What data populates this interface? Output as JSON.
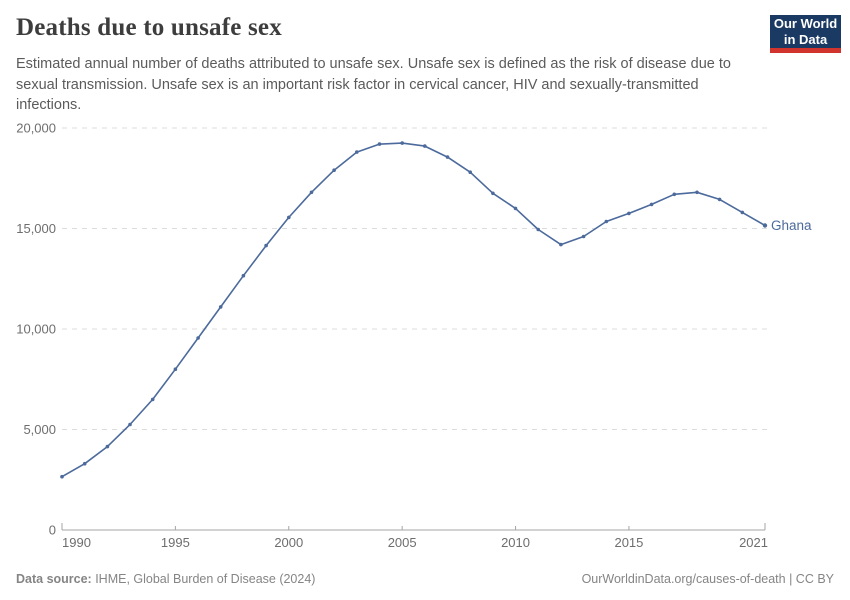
{
  "header": {
    "title": "Deaths due to unsafe sex",
    "subtitle": "Estimated annual number of deaths attributed to unsafe sex. Unsafe sex is defined as the risk of disease due to sexual transmission. Unsafe sex is an important risk factor in cervical cancer, HIV and sexually-transmitted infections.",
    "logo": {
      "line1": "Our World",
      "line2": "in Data",
      "bg_color": "#1a3a63",
      "accent_color": "#d0342c"
    }
  },
  "chart_data": {
    "type": "line",
    "title": "Deaths due to unsafe sex",
    "entity": "Ghana",
    "x": [
      1990,
      1991,
      1992,
      1993,
      1994,
      1995,
      1996,
      1997,
      1998,
      1999,
      2000,
      2001,
      2002,
      2003,
      2004,
      2005,
      2006,
      2007,
      2008,
      2009,
      2010,
      2011,
      2012,
      2013,
      2014,
      2015,
      2016,
      2017,
      2018,
      2019,
      2020,
      2021
    ],
    "values": [
      2650,
      3300,
      4150,
      5250,
      6500,
      8000,
      9550,
      11100,
      12650,
      14150,
      15550,
      16800,
      17900,
      18800,
      19200,
      19250,
      19100,
      18550,
      17800,
      16750,
      16000,
      14950,
      14200,
      14600,
      15350,
      15750,
      16200,
      16700,
      16800,
      16450,
      15800,
      15150
    ],
    "xlabel": "",
    "ylabel": "",
    "ylim": [
      0,
      20000
    ],
    "yticks": [
      0,
      5000,
      10000,
      15000,
      20000
    ],
    "ytick_labels": [
      "0",
      "5,000",
      "10,000",
      "15,000",
      "20,000"
    ],
    "xticks": [
      1990,
      1995,
      2000,
      2005,
      2010,
      2015,
      2021
    ],
    "grid": "horizontal-dashed",
    "legend_position": "end-of-line-label",
    "line_color": "#4c6a9c",
    "grid_color": "#dcdcdc",
    "axis_color": "#a5a5a5",
    "tick_label_color": "#6e6e6e"
  },
  "footer": {
    "source_label": "Data source:",
    "source_text": " IHME, Global Burden of Disease (2024)",
    "right_text": "OurWorldinData.org/causes-of-death | CC BY"
  }
}
